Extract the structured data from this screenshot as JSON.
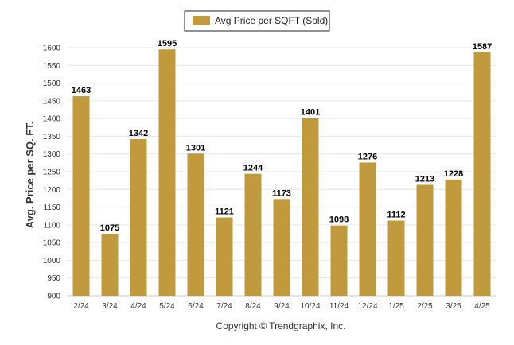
{
  "chart_data": {
    "type": "bar",
    "categories": [
      "2/24",
      "3/24",
      "4/24",
      "5/24",
      "6/24",
      "7/24",
      "8/24",
      "9/24",
      "10/24",
      "11/24",
      "12/24",
      "1/25",
      "2/25",
      "3/25",
      "4/25"
    ],
    "series": [
      {
        "name": "Avg Price per SQFT (Sold)",
        "values": [
          1463,
          1075,
          1342,
          1595,
          1301,
          1121,
          1244,
          1173,
          1401,
          1098,
          1276,
          1112,
          1213,
          1228,
          1587
        ]
      }
    ],
    "ylabel": "Avg. Price per SQ. FT.",
    "ylim": [
      900,
      1600
    ],
    "yticks": [
      900,
      950,
      1000,
      1050,
      1100,
      1150,
      1200,
      1250,
      1300,
      1350,
      1400,
      1450,
      1500,
      1550,
      1600
    ],
    "grid": true,
    "legend_position": "top-center",
    "bar_color": "#c29a3e",
    "data_labels": true
  },
  "footer": {
    "copyright": "Copyright © Trendgraphix, Inc."
  }
}
